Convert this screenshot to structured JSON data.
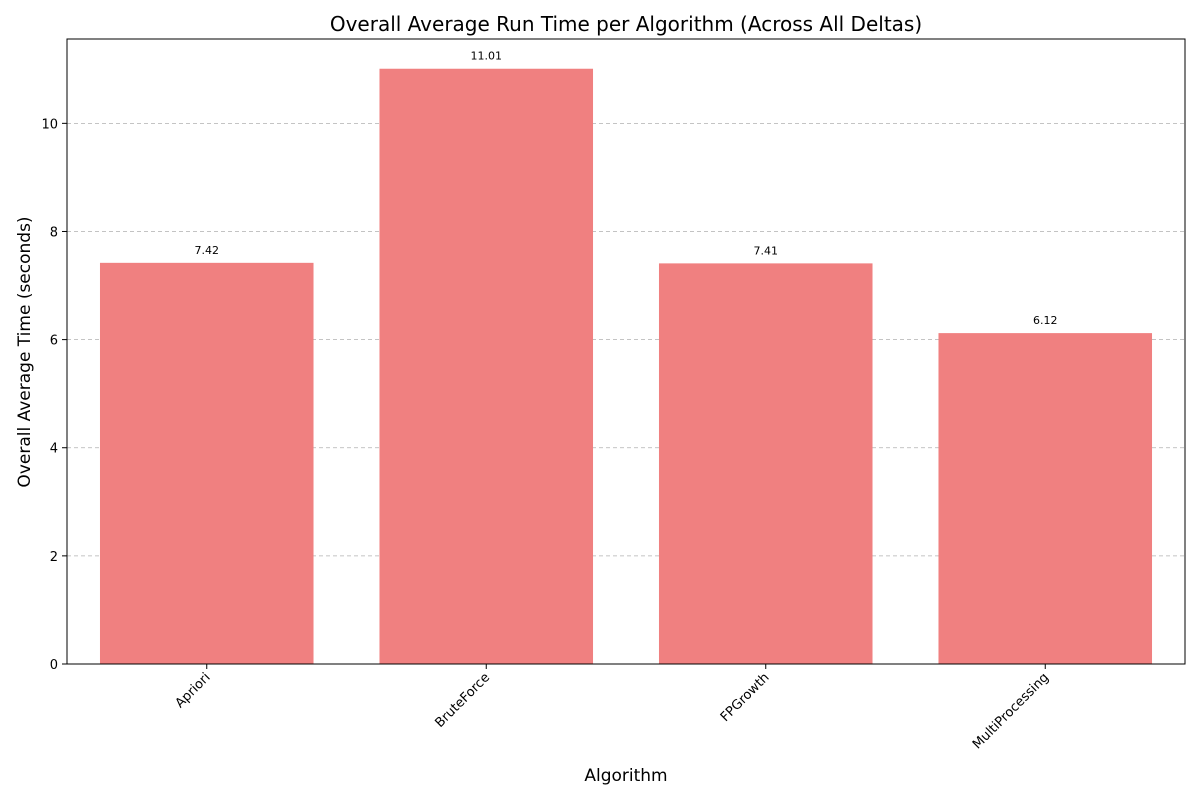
{
  "chart_data": {
    "type": "bar",
    "title": "Overall Average Run Time per Algorithm (Across All Deltas)",
    "xlabel": "Algorithm",
    "ylabel": "Overall Average Time (seconds)",
    "categories": [
      "Apriori",
      "BruteForce",
      "FPGrowth",
      "MultiProcessing"
    ],
    "values": [
      7.42,
      11.01,
      7.41,
      6.12
    ],
    "data_labels": [
      "7.42",
      "11.01",
      "7.41",
      "6.12"
    ],
    "ylim": [
      0,
      11.56
    ],
    "yticks": [
      0,
      2,
      4,
      6,
      8,
      10
    ],
    "ytick_labels": [
      "0",
      "2",
      "4",
      "6",
      "8",
      "10"
    ],
    "grid": "y-dashed",
    "bar_color": "#f08080",
    "legend": "none"
  }
}
